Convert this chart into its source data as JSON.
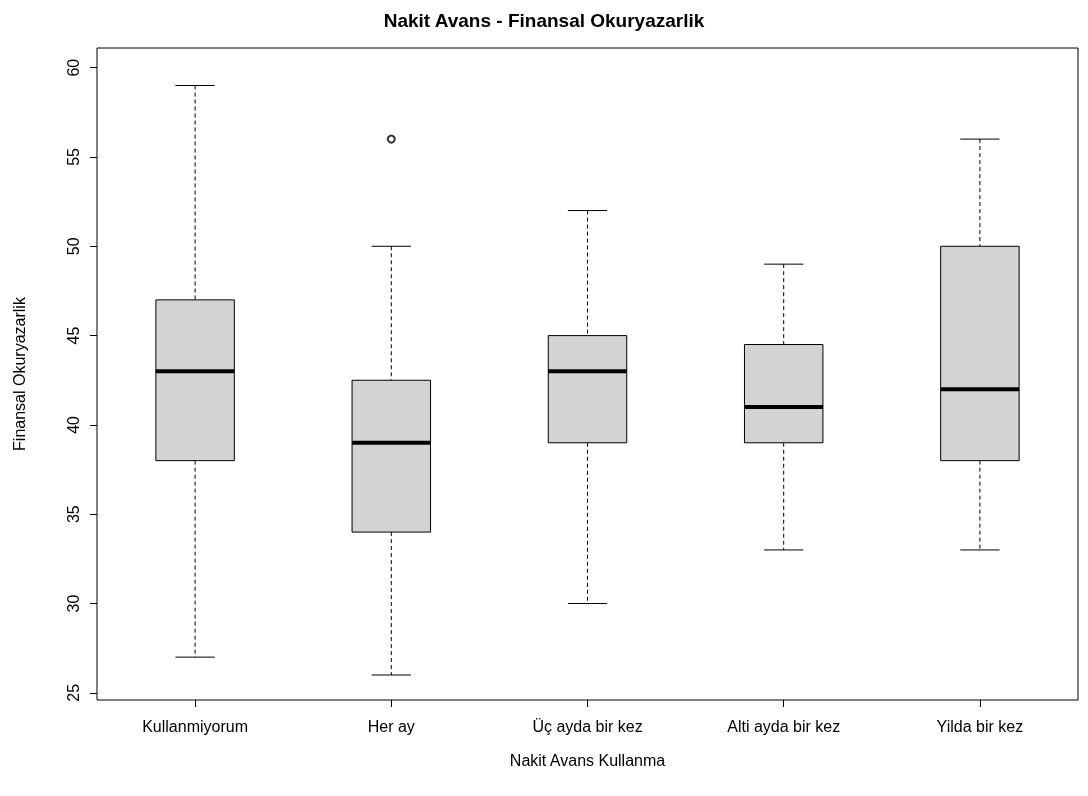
{
  "chart_data": {
    "type": "box",
    "title": "Nakit Avans - Finansal Okuryazarlik",
    "xlabel": "Nakit Avans Kullanma",
    "ylabel": "Finansal Okuryazarlik",
    "categories": [
      "Kullanmiyorum",
      "Her ay",
      "Üç ayda bir kez",
      "Alti ayda bir kez",
      "Yilda bir kez"
    ],
    "color": "#d3d3d3",
    "boxes": [
      {
        "low": 27,
        "q1": 38,
        "median": 43,
        "q3": 47,
        "high": 59
      },
      {
        "low": 26,
        "q1": 34,
        "median": 39,
        "q3": 42.5,
        "high": 50,
        "outliers": [
          56
        ]
      },
      {
        "low": 30,
        "q1": 39,
        "median": 43,
        "q3": 45,
        "high": 52
      },
      {
        "low": 33,
        "q1": 39,
        "median": 41,
        "q3": 44.5,
        "high": 49
      },
      {
        "low": 33,
        "q1": 38,
        "median": 42,
        "q3": 50,
        "high": 56
      }
    ],
    "ylim": [
      24.6,
      61.1
    ],
    "yticks": [
      25,
      30,
      35,
      40,
      45,
      50,
      55,
      60
    ],
    "grid": false
  }
}
